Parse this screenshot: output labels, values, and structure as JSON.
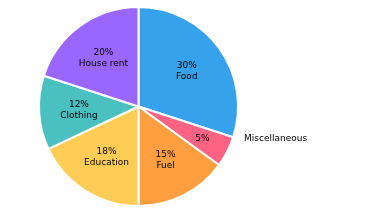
{
  "chart_data": {
    "type": "pie",
    "categories": [
      "Food",
      "Miscellaneous",
      "Fuel",
      "Education",
      "Clothing",
      "House rent"
    ],
    "values": [
      30,
      5,
      15,
      18,
      12,
      20
    ],
    "value_labels": [
      "30%",
      "5%",
      "15%",
      "18%",
      "12%",
      "20%"
    ],
    "data_labels": true,
    "legend": false
  }
}
